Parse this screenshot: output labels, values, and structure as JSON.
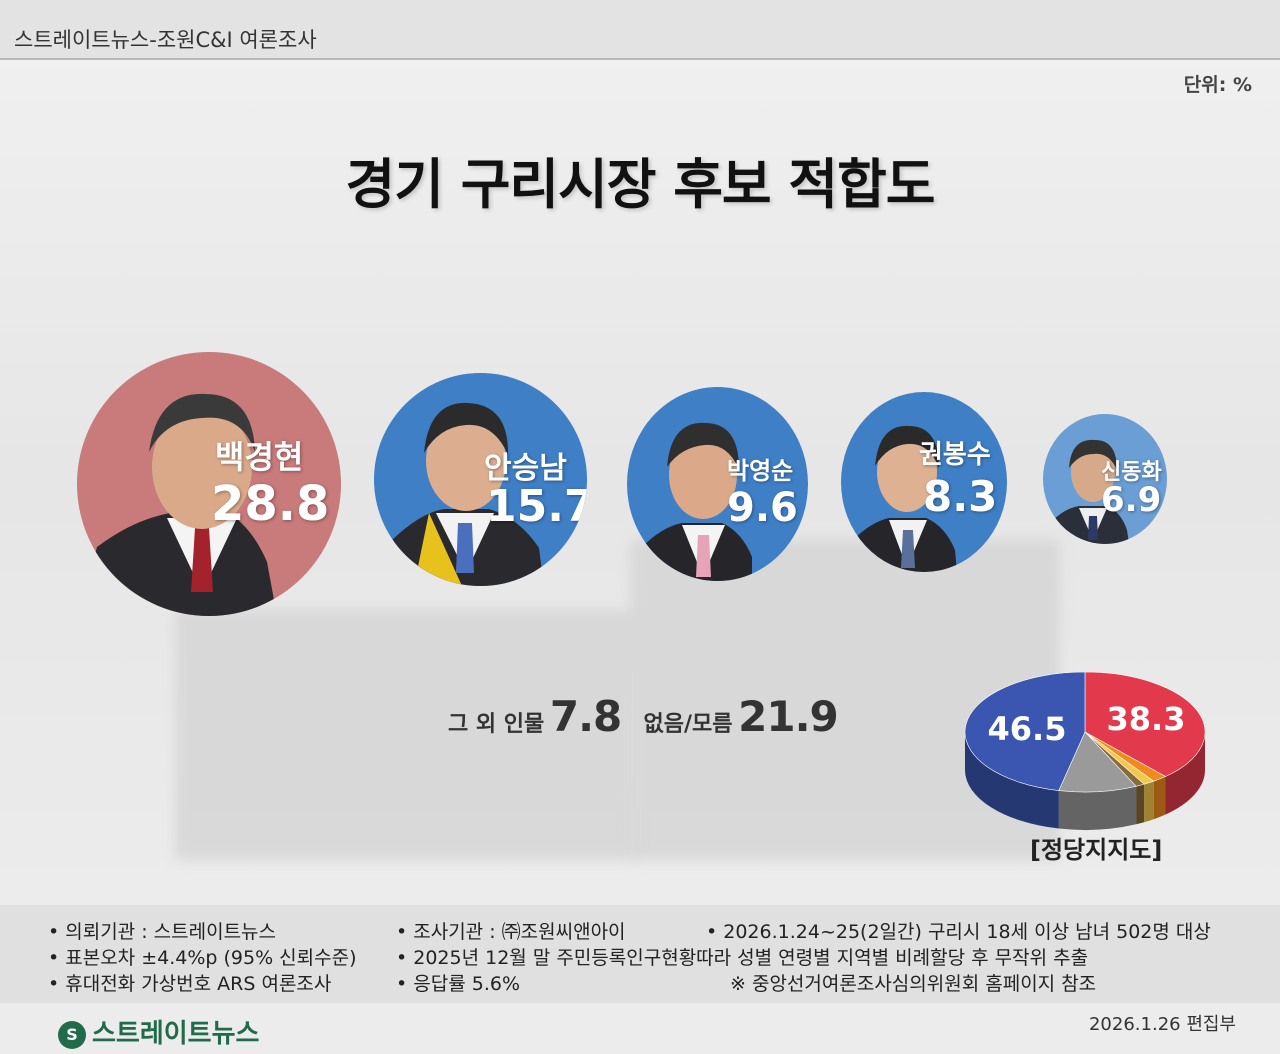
{
  "header": {
    "source": "스트레이트뉴스-조원C&I 여론조사",
    "unit": "단위: %"
  },
  "title": "경기 구리시장 후보 적합도",
  "chart_data": {
    "type": "bubble",
    "title": "경기 구리시장 후보 적합도",
    "unit": "%",
    "candidates": [
      {
        "name": "백경현",
        "value": 28.8,
        "party_color": "#c97a7a"
      },
      {
        "name": "안승남",
        "value": 15.7,
        "party_color": "#3f7fc6"
      },
      {
        "name": "박영순",
        "value": 9.6,
        "party_color": "#3f7fc6"
      },
      {
        "name": "권봉수",
        "value": 8.3,
        "party_color": "#3f7fc6"
      },
      {
        "name": "신동화",
        "value": 6.9,
        "party_color": "#6a9ed4"
      }
    ],
    "others": [
      {
        "label": "그 외 인물",
        "value": 7.8
      },
      {
        "label": "없음/모름",
        "value": 21.9
      }
    ],
    "pie": {
      "type": "pie",
      "label": "[정당지지도]",
      "slices": [
        {
          "value": 46.5,
          "color": "#3b56b0"
        },
        {
          "value": 38.3,
          "color": "#e23a4c"
        },
        {
          "value": 2.0,
          "color": "#f08a1c"
        },
        {
          "value": 1.5,
          "color": "#f4c84a"
        },
        {
          "value": 1.2,
          "color": "#8a6a3c"
        },
        {
          "value": 10.5,
          "color": "#9a9a9a"
        }
      ],
      "labels_shown": [
        "46.5",
        "38.3"
      ]
    }
  },
  "footer": {
    "col1": [
      "• 의뢰기관 : 스트레이트뉴스",
      "• 표본오차 ±4.4%p (95% 신뢰수준)",
      "• 휴대전화 가상번호 ARS 여론조사"
    ],
    "col2": [
      "• 조사기관 : ㈜조원씨앤아이",
      "• 2025년 12월 말 주민등록인구현황따라 성별 연령별 지역별 비례할당 후 무작위 추출",
      "• 응답률 5.6%"
    ],
    "col3": [
      "• 2026.1.24~25(2일간) 구리시 18세 이상 남녀 502명 대상",
      "※ 중앙선거여론조사심의위원회 홈페이지 참조"
    ],
    "logo": "스트레이트뉴스",
    "logo_mark": "S",
    "date": "2026.1.26  편집부"
  }
}
